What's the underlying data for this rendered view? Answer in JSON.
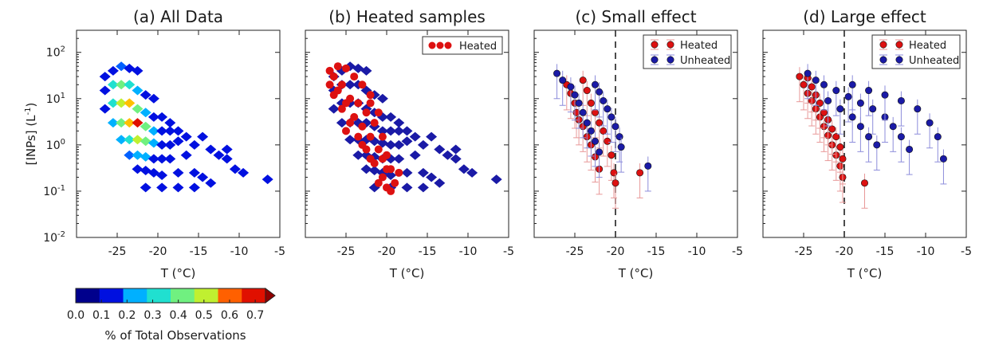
{
  "colors": {
    "heated": "#dd1111",
    "unheated": "#1a1aa6",
    "heated_err": "#e89898",
    "unheated_err": "#8d8ddb",
    "colormap": [
      "#00008c",
      "#0010e0",
      "#0060ff",
      "#00b0ff",
      "#20e0d0",
      "#70f080",
      "#c0f030",
      "#ffc000",
      "#ff6000",
      "#e01000",
      "#900000"
    ]
  },
  "ylabel_base": "[INPs] (L",
  "ylabel_exp": "-1",
  "ylabel_tail": ")",
  "chart_data": [
    {
      "type": "heatmap",
      "title": "(a) All Data",
      "xlabel": "T (°C)",
      "ylabel": "[INPs] (L-1)",
      "xlim": [
        -30,
        -5
      ],
      "ylim": [
        0.01,
        300
      ],
      "yscale": "log",
      "xticks": [
        "-25",
        "-20",
        "-15",
        "-10",
        "-5"
      ],
      "yticks": [
        "10^2",
        "10^1",
        "10^0",
        "10^-1",
        "10^-2"
      ],
      "legend": "none",
      "series": [
        {
          "cells": [
            [
              -26.5,
              30,
              0.05
            ],
            [
              -25.5,
              40,
              0.1
            ],
            [
              -24.5,
              50,
              0.15
            ],
            [
              -23.5,
              45,
              0.1
            ],
            [
              -22.5,
              40,
              0.05
            ],
            [
              -26.5,
              15,
              0.1
            ],
            [
              -25.5,
              20,
              0.3
            ],
            [
              -24.5,
              20,
              0.4
            ],
            [
              -23.5,
              20,
              0.3
            ],
            [
              -22.5,
              15,
              0.2
            ],
            [
              -21.5,
              12,
              0.1
            ],
            [
              -20.5,
              10,
              0.05
            ],
            [
              -26.5,
              6,
              0.1
            ],
            [
              -25.5,
              8,
              0.3
            ],
            [
              -24.5,
              8,
              0.5
            ],
            [
              -23.5,
              8,
              0.55
            ],
            [
              -22.5,
              6,
              0.4
            ],
            [
              -21.5,
              5,
              0.2
            ],
            [
              -20.5,
              4,
              0.1
            ],
            [
              -19.5,
              4,
              0.05
            ],
            [
              -25.5,
              3,
              0.2
            ],
            [
              -24.5,
              3,
              0.4
            ],
            [
              -23.5,
              3,
              0.6
            ],
            [
              -22.5,
              3,
              0.7
            ],
            [
              -21.5,
              2.5,
              0.4
            ],
            [
              -20.5,
              2,
              0.2
            ],
            [
              -19.5,
              2,
              0.1
            ],
            [
              -18.5,
              2,
              0.05
            ],
            [
              -24.5,
              1.3,
              0.2
            ],
            [
              -23.5,
              1.3,
              0.35
            ],
            [
              -22.5,
              1.3,
              0.5
            ],
            [
              -21.5,
              1.2,
              0.4
            ],
            [
              -20.5,
              1.1,
              0.2
            ],
            [
              -19.5,
              1,
              0.1
            ],
            [
              -18.5,
              1,
              0.05
            ],
            [
              -17.5,
              1.2,
              0.05
            ],
            [
              -23.5,
              0.6,
              0.15
            ],
            [
              -22.5,
              0.6,
              0.25
            ],
            [
              -21.5,
              0.55,
              0.2
            ],
            [
              -20.5,
              0.5,
              0.1
            ],
            [
              -19.5,
              0.5,
              0.05
            ],
            [
              -18.5,
              0.5,
              0.05
            ],
            [
              -16.5,
              0.6,
              0.05
            ],
            [
              -22.5,
              0.3,
              0.1
            ],
            [
              -21.5,
              0.28,
              0.05
            ],
            [
              -20.5,
              0.25,
              0.05
            ],
            [
              -19.5,
              0.22,
              0.05
            ],
            [
              -17.5,
              0.25,
              0.05
            ],
            [
              -15.5,
              0.25,
              0.05
            ],
            [
              -14.5,
              0.2,
              0.05
            ],
            [
              -21.5,
              0.12,
              0.05
            ],
            [
              -19.5,
              0.12,
              0.05
            ],
            [
              -17.5,
              0.12,
              0.05
            ],
            [
              -15.5,
              0.12,
              0.05
            ],
            [
              -13.5,
              0.15,
              0.05
            ],
            [
              -11.5,
              0.5,
              0.05
            ],
            [
              -10.5,
              0.3,
              0.05
            ],
            [
              -9.5,
              0.25,
              0.05
            ],
            [
              -6.5,
              0.18,
              0.05
            ],
            [
              -18.5,
              3,
              0.05
            ],
            [
              -17.5,
              2,
              0.05
            ],
            [
              -16.5,
              1.5,
              0.05
            ],
            [
              -15.5,
              1,
              0.05
            ],
            [
              -14.5,
              1.5,
              0.05
            ],
            [
              -13.5,
              0.8,
              0.05
            ],
            [
              -12.5,
              0.6,
              0.05
            ],
            [
              -11.5,
              0.8,
              0.05
            ]
          ]
        }
      ]
    },
    {
      "type": "scatter",
      "title": "(b) Heated samples",
      "xlabel": "T (°C)",
      "xlim": [
        -30,
        -5
      ],
      "ylim": [
        0.01,
        300
      ],
      "yscale": "log",
      "xticks": [
        "-25",
        "-20",
        "-15",
        "-10",
        "-5"
      ],
      "legend": "top-right",
      "series": [
        {
          "name": "Heated",
          "points": [
            [
              -27,
              40
            ],
            [
              -26.5,
              30
            ],
            [
              -26,
              50
            ],
            [
              -25.5,
              20
            ],
            [
              -25,
              45
            ],
            [
              -24.5,
              10
            ],
            [
              -24,
              30
            ],
            [
              -23.5,
              8
            ],
            [
              -23,
              20
            ],
            [
              -22.5,
              5
            ],
            [
              -22,
              12
            ],
            [
              -26,
              15
            ],
            [
              -25,
              8
            ],
            [
              -24,
              4
            ],
            [
              -23,
              2.5
            ],
            [
              -22,
              1.5
            ],
            [
              -21.5,
              3
            ],
            [
              -21,
              0.8
            ],
            [
              -20.5,
              1.5
            ],
            [
              -20.5,
              0.5
            ],
            [
              -20,
              0.3
            ],
            [
              -20.5,
              0.2
            ],
            [
              -20,
              0.12
            ],
            [
              -19.5,
              0.1
            ],
            [
              -21,
              0.15
            ],
            [
              -19,
              0.15
            ],
            [
              -18.5,
              0.25
            ],
            [
              -22,
              0.5
            ],
            [
              -23,
              1
            ],
            [
              -25.5,
              6
            ],
            [
              -24.5,
              3
            ],
            [
              -23.5,
              1.5
            ],
            [
              -22.5,
              0.8
            ],
            [
              -21.5,
              0.4
            ],
            [
              -26.5,
              12
            ],
            [
              -27,
              20
            ],
            [
              -25,
              2
            ],
            [
              -21,
              5
            ],
            [
              -22,
              8
            ],
            [
              -20,
              0.6
            ],
            [
              -19.5,
              0.3
            ]
          ]
        }
      ]
    },
    {
      "type": "scatter",
      "title": "(c) Small effect",
      "xlabel": "T (°C)",
      "xlim": [
        -30,
        -5
      ],
      "ylim": [
        0.01,
        300
      ],
      "yscale": "log",
      "xticks": [
        "-25",
        "-20",
        "-15",
        "-10",
        "-5"
      ],
      "vline": -20,
      "legend": "top-right",
      "series": [
        {
          "name": "Heated",
          "points": [
            [
              -26,
              20
            ],
            [
              -25.5,
              13
            ],
            [
              -25,
              8
            ],
            [
              -24.8,
              5
            ],
            [
              -24.5,
              3.5
            ],
            [
              -24,
              2.5
            ],
            [
              -23.5,
              1.5
            ],
            [
              -23,
              1
            ],
            [
              -22.5,
              0.55
            ],
            [
              -22,
              0.3
            ],
            [
              -24,
              25
            ],
            [
              -23.5,
              15
            ],
            [
              -23,
              8
            ],
            [
              -22.5,
              5
            ],
            [
              -22,
              3
            ],
            [
              -21.5,
              2
            ],
            [
              -21,
              1.2
            ],
            [
              -20.5,
              0.6
            ],
            [
              -20.2,
              0.25
            ],
            [
              -20,
              0.15
            ],
            [
              -17,
              0.25
            ]
          ]
        },
        {
          "name": "Unheated",
          "points": [
            [
              -27.2,
              35
            ],
            [
              -26.5,
              25
            ],
            [
              -25.5,
              18
            ],
            [
              -25,
              12
            ],
            [
              -24.5,
              8
            ],
            [
              -24,
              5
            ],
            [
              -23.5,
              3
            ],
            [
              -23,
              2
            ],
            [
              -22.5,
              1.2
            ],
            [
              -22,
              0.7
            ],
            [
              -22.5,
              20
            ],
            [
              -22,
              14
            ],
            [
              -21.5,
              9
            ],
            [
              -21,
              6
            ],
            [
              -20.5,
              4
            ],
            [
              -20,
              2.5
            ],
            [
              -19.5,
              1.5
            ],
            [
              -19.3,
              0.9
            ],
            [
              -16,
              0.35
            ]
          ]
        }
      ]
    },
    {
      "type": "scatter",
      "title": "(d) Large effect",
      "xlabel": "T (°C)",
      "xlim": [
        -30,
        -5
      ],
      "ylim": [
        0.01,
        300
      ],
      "yscale": "log",
      "xticks": [
        "-25",
        "-20",
        "-15",
        "-10",
        "-5"
      ],
      "vline": -20,
      "legend": "top-right",
      "series": [
        {
          "name": "Heated",
          "points": [
            [
              -25.5,
              30
            ],
            [
              -25,
              20
            ],
            [
              -24.5,
              13
            ],
            [
              -24,
              9
            ],
            [
              -23.5,
              6
            ],
            [
              -23,
              4
            ],
            [
              -22.5,
              2.5
            ],
            [
              -22,
              1.6
            ],
            [
              -21.5,
              1
            ],
            [
              -21,
              0.6
            ],
            [
              -20.5,
              0.35
            ],
            [
              -20.2,
              0.2
            ],
            [
              -24.5,
              28
            ],
            [
              -24,
              18
            ],
            [
              -23.5,
              12
            ],
            [
              -23,
              8
            ],
            [
              -22.5,
              5
            ],
            [
              -22,
              3.5
            ],
            [
              -21.5,
              2.2
            ],
            [
              -21,
              1.5
            ],
            [
              -20.5,
              0.9
            ],
            [
              -20.2,
              0.5
            ],
            [
              -17.5,
              0.15
            ]
          ]
        },
        {
          "name": "Unheated",
          "points": [
            [
              -24.5,
              35
            ],
            [
              -23.5,
              25
            ],
            [
              -22.5,
              20
            ],
            [
              -21,
              15
            ],
            [
              -19.5,
              11
            ],
            [
              -18,
              8
            ],
            [
              -16.5,
              6
            ],
            [
              -15,
              4
            ],
            [
              -14,
              2.5
            ],
            [
              -13,
              1.5
            ],
            [
              -12,
              0.8
            ],
            [
              -19,
              20
            ],
            [
              -17,
              15
            ],
            [
              -15,
              12
            ],
            [
              -13,
              9
            ],
            [
              -11,
              6
            ],
            [
              -9.5,
              3
            ],
            [
              -8.5,
              1.5
            ],
            [
              -7.8,
              0.5
            ],
            [
              -22,
              9
            ],
            [
              -20.5,
              6
            ],
            [
              -19,
              4
            ],
            [
              -18,
              2.5
            ],
            [
              -17,
              1.5
            ],
            [
              -16,
              1
            ]
          ]
        }
      ]
    }
  ],
  "colorbar": {
    "label": "% of Total Observations",
    "min": 0.0,
    "max": 0.8,
    "tick_labels": [
      "0.0",
      "0.1",
      "0.2",
      "0.3",
      "0.4",
      "0.5",
      "0.6",
      "0.7"
    ]
  }
}
